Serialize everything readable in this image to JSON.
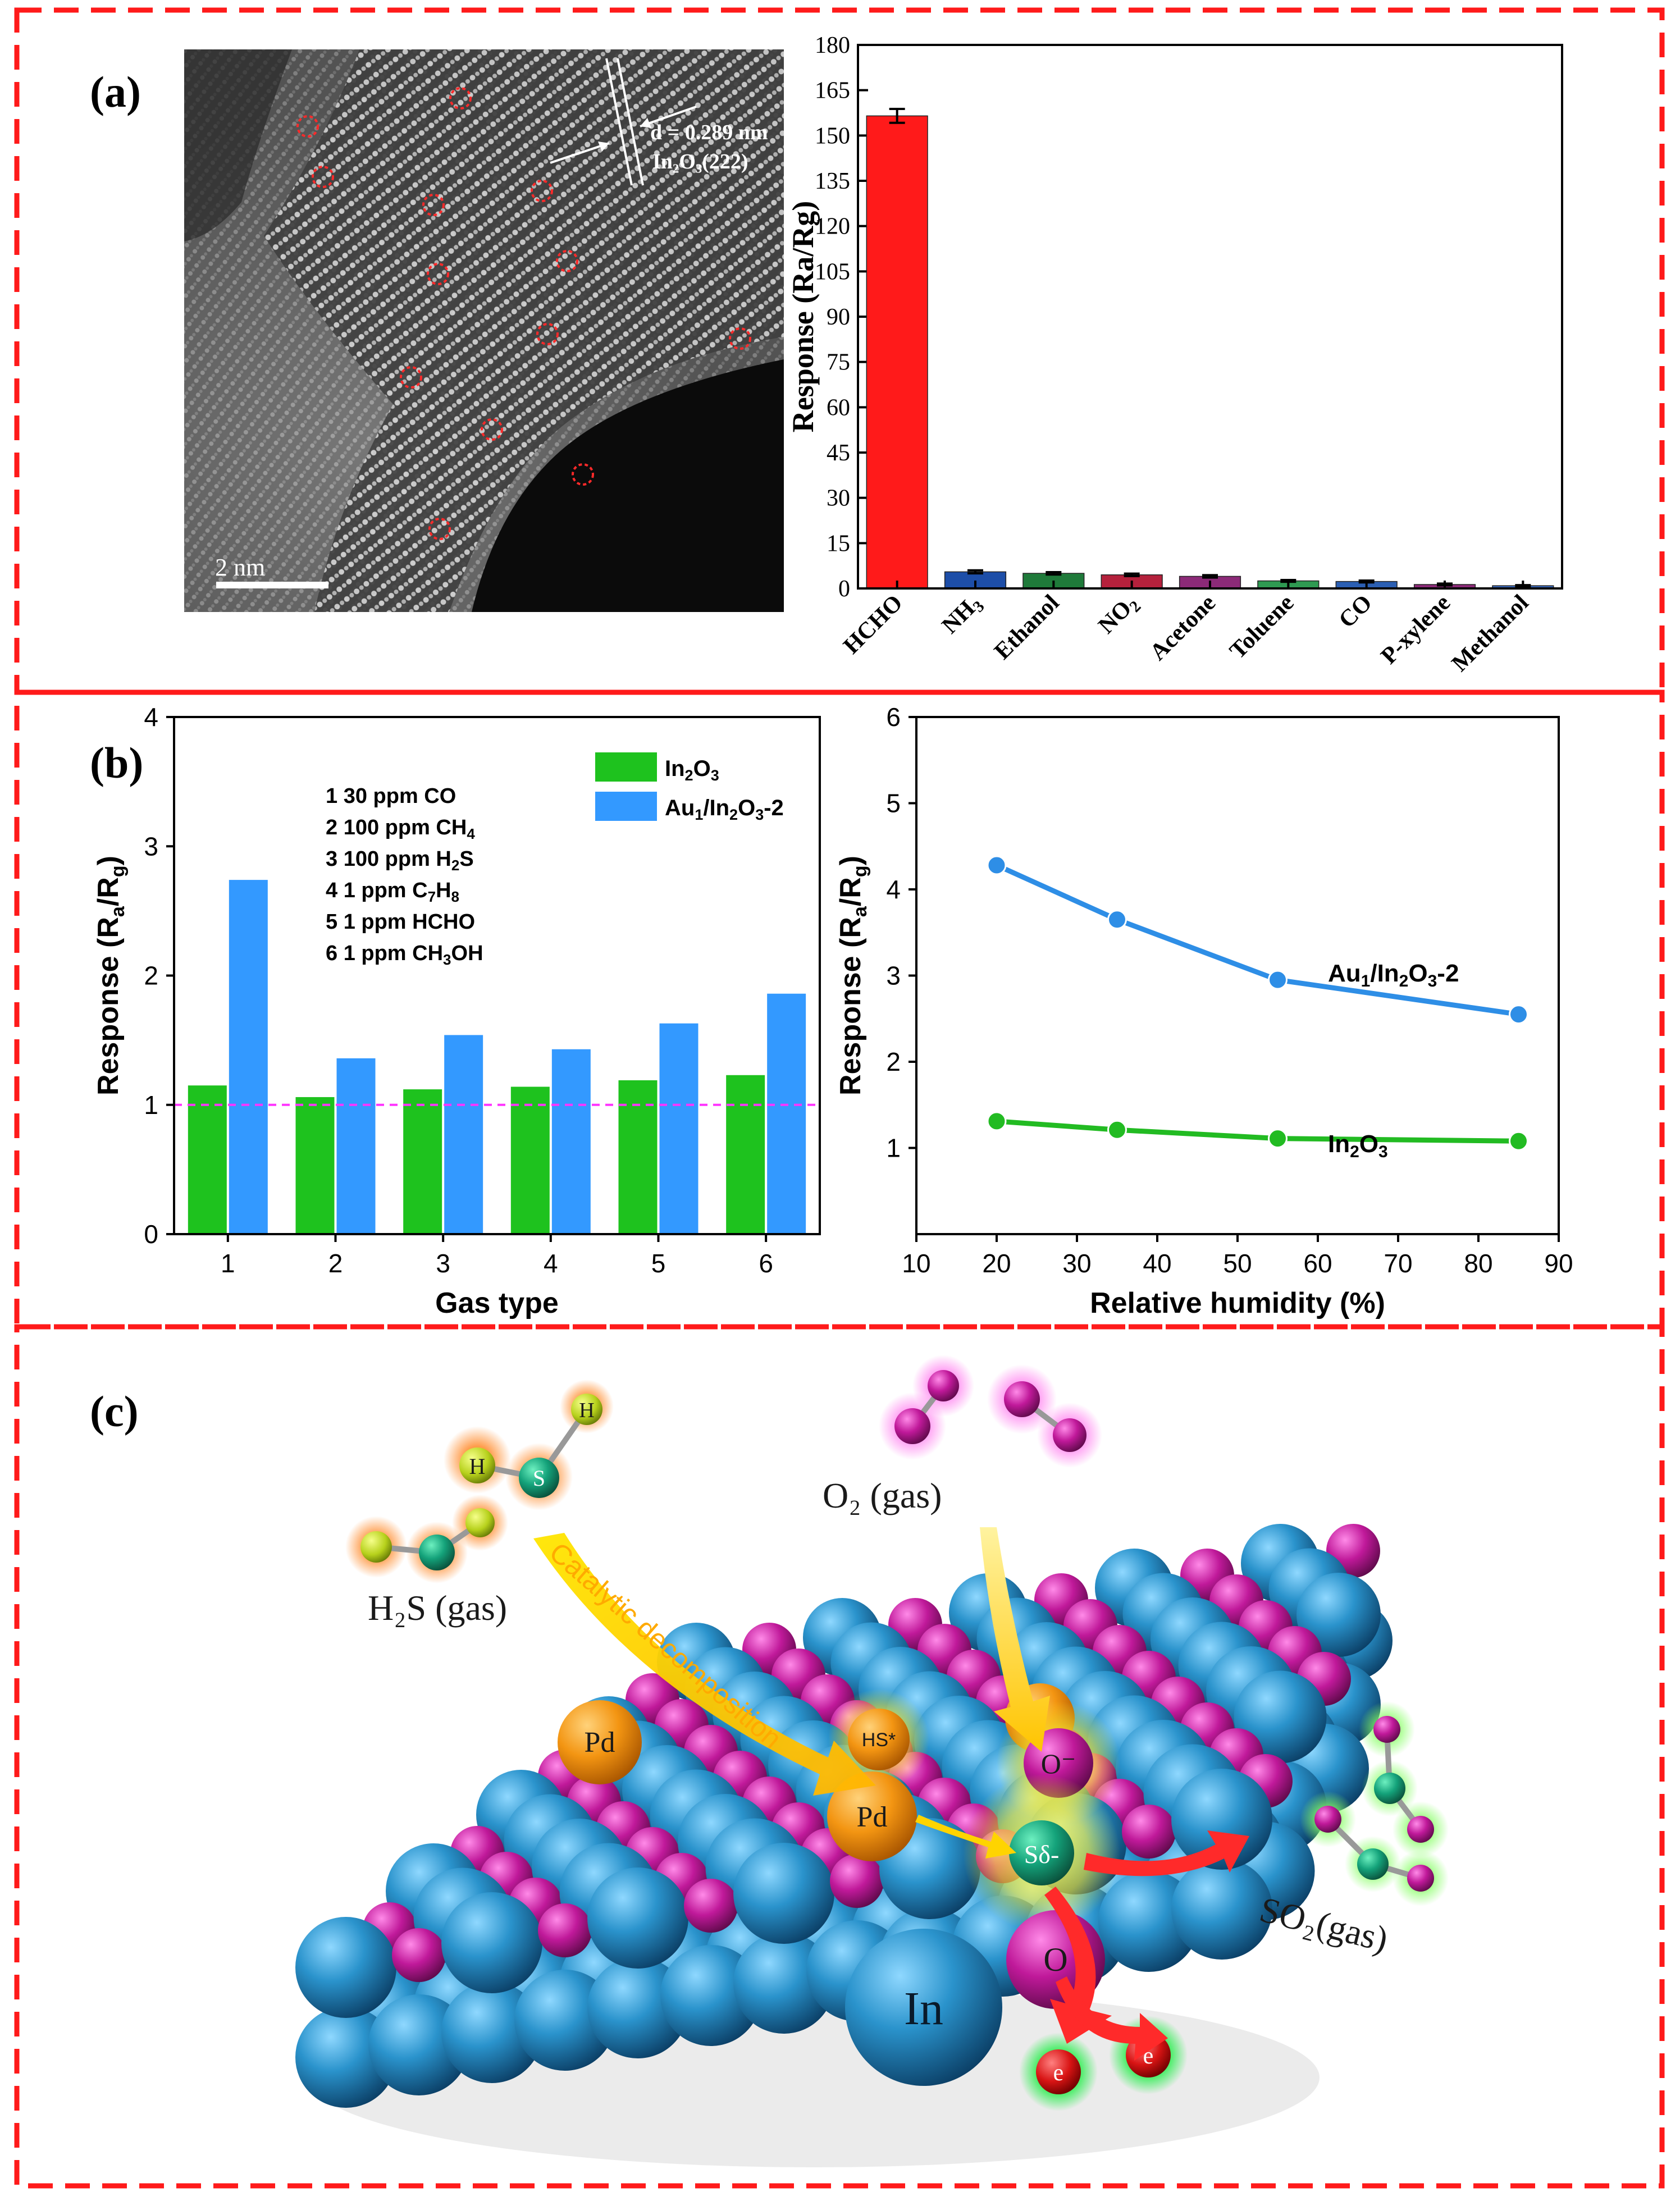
{
  "panels": {
    "a_label": "(a)",
    "b_label": "(b)",
    "c_label": "(c)"
  },
  "tem": {
    "scale_bar": "2 nm",
    "spacing": "d = 0.289 nm",
    "plane": "In₂O₃(222)"
  },
  "chart_data": [
    {
      "id": "a-gas-selectivity",
      "type": "bar",
      "title": "",
      "ylabel": "Response (Ra/Rg)",
      "xlabel": "",
      "ylim": [
        0,
        180
      ],
      "yticks": [
        "0",
        "15",
        "30",
        "45",
        "60",
        "75",
        "90",
        "105",
        "120",
        "135",
        "150",
        "165",
        "180"
      ],
      "categories": [
        "HCHO",
        "NH3",
        "Ethanol",
        "NO2",
        "Acetone",
        "Toluene",
        "CO",
        "P-xylene",
        "Methanol"
      ],
      "values": [
        156.5,
        5.5,
        5.0,
        4.5,
        4.0,
        2.5,
        2.3,
        1.3,
        0.9
      ],
      "errors": [
        2.3,
        0.5,
        0.4,
        0.4,
        0.4,
        0.3,
        0.3,
        0.3,
        0.2
      ],
      "colors": [
        "#ff1a1a",
        "#1d4ea8",
        "#1f7a3a",
        "#b5213c",
        "#8c2a78",
        "#2f9a52",
        "#2b5fb3",
        "#8c2a78",
        "#3a6ac0"
      ],
      "grid": false
    },
    {
      "id": "b-gas-type",
      "type": "bar",
      "xlabel": "Gas type",
      "ylabel": "Response (Ra/Rg)",
      "ylim": [
        0,
        4
      ],
      "yticks": [
        "0",
        "1",
        "2",
        "3",
        "4"
      ],
      "categories": [
        "1",
        "2",
        "3",
        "4",
        "5",
        "6"
      ],
      "series": [
        {
          "name": "In2O3",
          "color": "#1ec21e",
          "values": [
            1.15,
            1.06,
            1.12,
            1.14,
            1.19,
            1.23
          ]
        },
        {
          "name": "Au1/In2O3-2",
          "color": "#3399ff",
          "values": [
            2.74,
            1.36,
            1.54,
            1.43,
            1.63,
            1.86
          ]
        }
      ],
      "reference_line": {
        "value": 1,
        "color": "#ff33ff"
      },
      "gas_legend": [
        {
          "n": "1",
          "conc": "30",
          "unit": "ppm",
          "gas": "CO"
        },
        {
          "n": "2",
          "conc": "100",
          "unit": "ppm",
          "gas": "CH4"
        },
        {
          "n": "3",
          "conc": "100",
          "unit": "ppm",
          "gas": "H2S"
        },
        {
          "n": "4",
          "conc": "1",
          "unit": "ppm",
          "gas": "C7H8"
        },
        {
          "n": "5",
          "conc": "1",
          "unit": "ppm",
          "gas": "HCHO"
        },
        {
          "n": "6",
          "conc": "1",
          "unit": "ppm",
          "gas": "CH3OH"
        }
      ],
      "legend": "top-right",
      "grid": false
    },
    {
      "id": "b-humidity",
      "type": "line",
      "xlabel": "Relative humidity (%)",
      "ylabel": "Response (Ra/Rg)",
      "xlim": [
        10,
        90
      ],
      "ylim": [
        0,
        6
      ],
      "xticks": [
        "10",
        "20",
        "30",
        "40",
        "50",
        "60",
        "70",
        "80",
        "90"
      ],
      "yticks": [
        "1",
        "2",
        "3",
        "4",
        "5",
        "6"
      ],
      "series": [
        {
          "name": "Au1/In2O3-2",
          "color": "#2e8ee6",
          "x": [
            20,
            35,
            55,
            85
          ],
          "y": [
            4.28,
            3.65,
            2.95,
            2.55
          ]
        },
        {
          "name": "In2O3",
          "color": "#22bb22",
          "x": [
            20,
            35,
            55,
            85
          ],
          "y": [
            1.31,
            1.21,
            1.11,
            1.08
          ]
        }
      ],
      "grid": false
    }
  ],
  "scheme": {
    "h2s": "H₂S (gas)",
    "o2": "O₂ (gas)",
    "so2": "SO₂(gas)",
    "arrow_text": "Catalytic decomposition",
    "pd": "Pd",
    "in": "In",
    "o": "O",
    "o_minus": "O⁻",
    "hs": "HS*",
    "s": "Sδ-",
    "h": "H",
    "s_atom": "S",
    "e": "e"
  },
  "colors": {
    "frame": "#ff1a1a",
    "in_atom": "#1f8fc7",
    "o_atom": "#c0199a",
    "pd_atom": "#f59b16"
  }
}
